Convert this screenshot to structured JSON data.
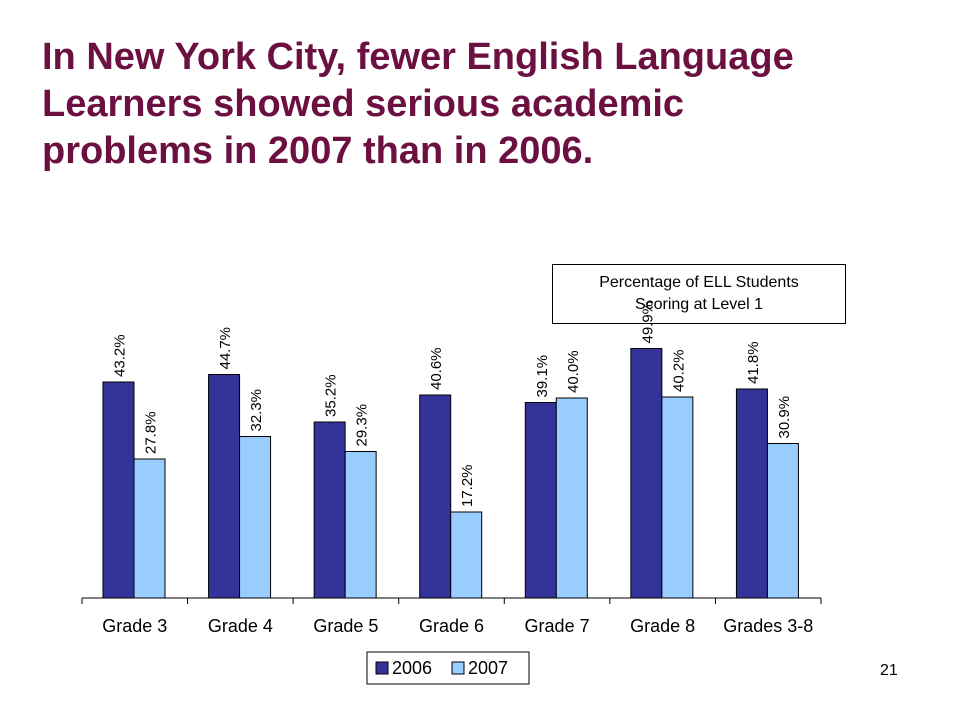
{
  "slide": {
    "title_lines": [
      "In New York City, fewer English Language",
      "Learners showed serious academic",
      "problems in 2007 than in 2006."
    ],
    "note_lines": [
      "Percentage of ELL Students",
      "Scoring at Level 1"
    ],
    "page_number": "21"
  },
  "chart_data": {
    "type": "bar",
    "title": "",
    "xlabel": "",
    "ylabel": "",
    "categories": [
      "Grade 3",
      "Grade 4",
      "Grade 5",
      "Grade 6",
      "Grade 7",
      "Grade 8",
      "Grades 3-8"
    ],
    "series": [
      {
        "name": "2006",
        "values": [
          43.2,
          44.7,
          35.2,
          40.6,
          39.1,
          49.9,
          41.8
        ],
        "labels": [
          "43.2%",
          "44.7%",
          "35.2%",
          "40.6%",
          "39.1%",
          "49.9%",
          "41.8%"
        ],
        "color": "#333399"
      },
      {
        "name": "2007",
        "values": [
          27.8,
          32.3,
          29.3,
          17.2,
          40.0,
          40.2,
          30.9
        ],
        "labels": [
          "27.8%",
          "32.3%",
          "29.3%",
          "17.2%",
          "40.0%",
          "40.2%",
          "30.9%"
        ],
        "color": "#99ccff"
      }
    ],
    "ylim": [
      0,
      50
    ],
    "y_axis_visible": false,
    "grid": false,
    "legend_position": "bottom-center"
  }
}
